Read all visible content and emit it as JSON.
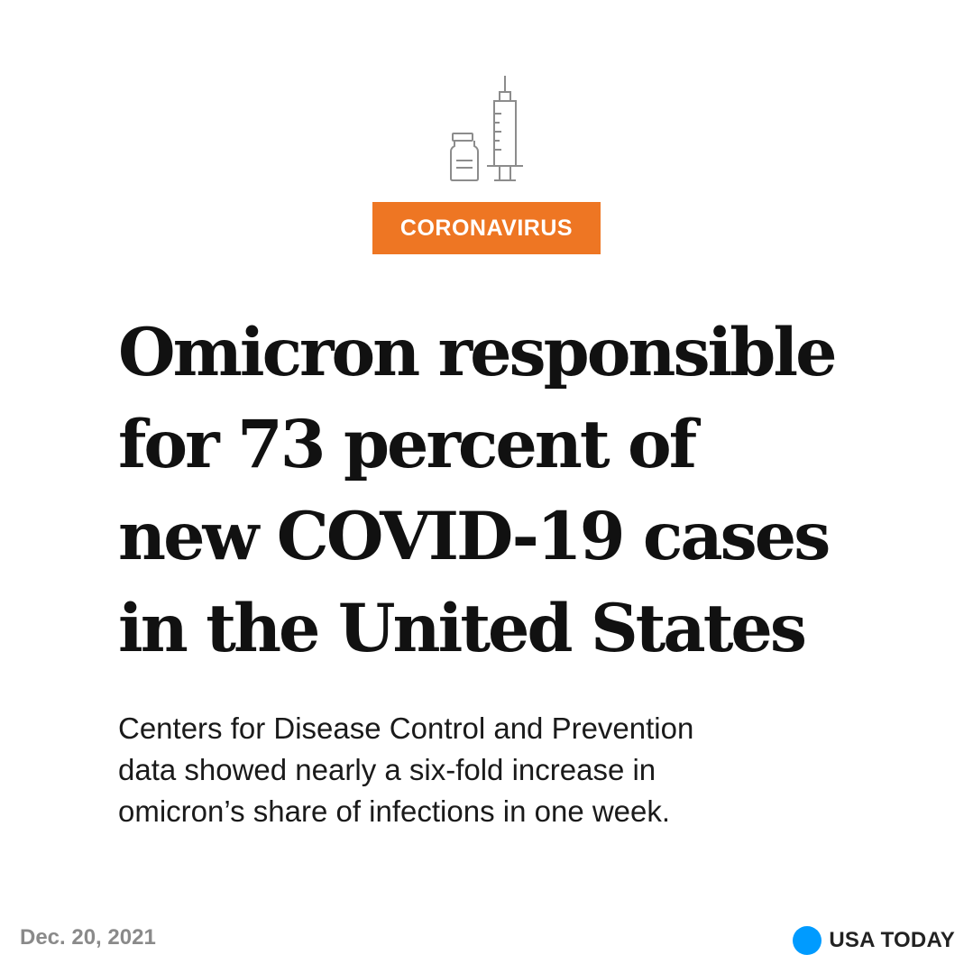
{
  "icon": "vaccine-syringe-vial-icon",
  "tag": {
    "label": "CORONAVIRUS",
    "color": "#ee7623"
  },
  "headline": {
    "lines": [
      "Omicron responsible",
      "for 73 percent of",
      "new COVID-19 cases",
      "in the United States"
    ]
  },
  "subtext": {
    "lines": [
      "Centers for Disease Control and Prevention",
      "data showed nearly a six-fold increase in",
      "omicron’s share of infections in one week."
    ]
  },
  "footer": {
    "date": "Dec. 20, 2021",
    "brand": "USA TODAY",
    "brand_color": "#009bff"
  }
}
